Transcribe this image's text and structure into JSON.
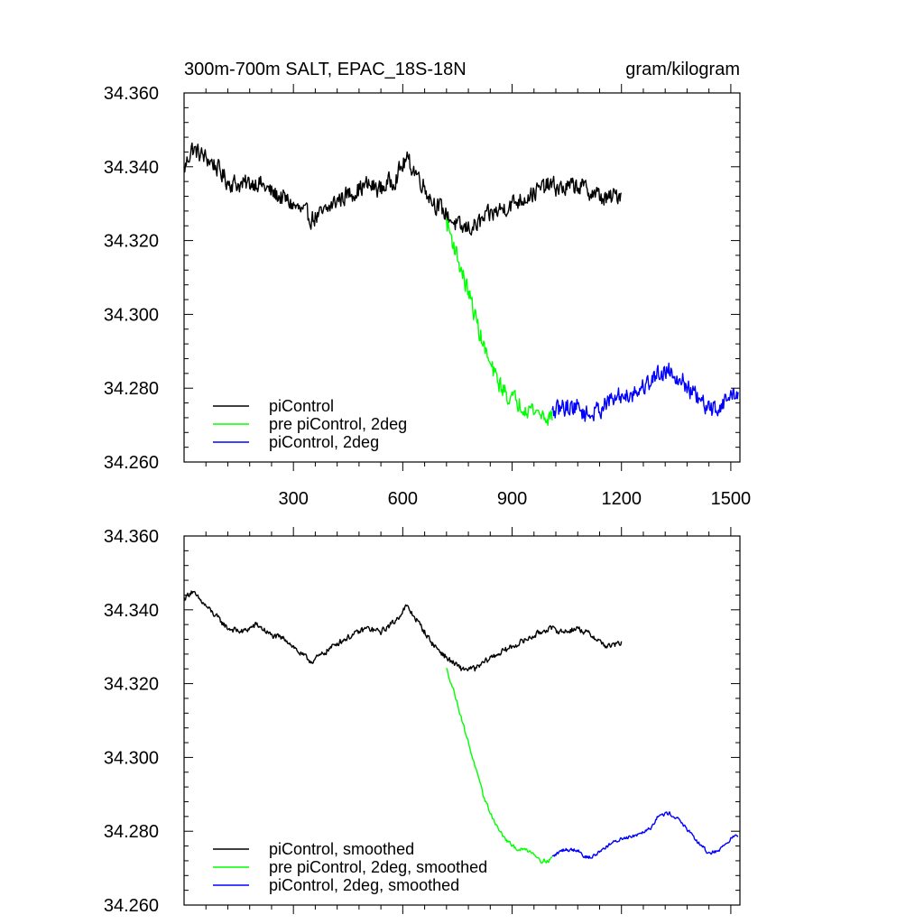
{
  "chart_data": [
    {
      "type": "line",
      "title": "300m-700m SALT, EPAC_18S-18N",
      "units": "gram/kilogram",
      "xlim": [
        0,
        1525
      ],
      "ylim": [
        34.26,
        34.36
      ],
      "x_ticks": [
        300,
        600,
        900,
        1200,
        1500
      ],
      "y_ticks": [
        "34.260",
        "34.280",
        "34.300",
        "34.320",
        "34.340",
        "34.360"
      ],
      "legend_position": "bottom-left",
      "series": [
        {
          "name": "piControl",
          "color": "#000000",
          "noise": 0.0035,
          "x": [
            0,
            20,
            50,
            80,
            120,
            160,
            200,
            240,
            280,
            320,
            350,
            380,
            420,
            460,
            500,
            540,
            580,
            610,
            640,
            680,
            720,
            760,
            800,
            840,
            880,
            920,
            960,
            1000,
            1040,
            1080,
            1120,
            1160,
            1200
          ],
          "y": [
            34.339,
            34.345,
            34.343,
            34.341,
            34.336,
            34.335,
            34.336,
            34.333,
            34.331,
            34.328,
            34.326,
            34.327,
            34.331,
            34.333,
            34.335,
            34.334,
            34.337,
            34.342,
            34.338,
            34.331,
            34.327,
            34.323,
            34.324,
            34.327,
            34.329,
            34.331,
            34.333,
            34.335,
            34.334,
            34.335,
            34.333,
            34.331,
            34.333
          ]
        },
        {
          "name": "pre piControl, 2deg",
          "color": "#00ff00",
          "noise": 0.0035,
          "x": [
            720,
            740,
            760,
            780,
            800,
            820,
            840,
            860,
            880,
            900,
            920,
            940,
            960,
            980,
            1000,
            1010
          ],
          "y": [
            34.325,
            34.319,
            34.312,
            34.306,
            34.299,
            34.292,
            34.286,
            34.282,
            34.279,
            34.277,
            34.276,
            34.275,
            34.274,
            34.273,
            34.272,
            34.273
          ]
        },
        {
          "name": "piControl, 2deg",
          "color": "#0000ff",
          "noise": 0.0035,
          "x": [
            1010,
            1040,
            1080,
            1100,
            1120,
            1160,
            1200,
            1240,
            1280,
            1300,
            1330,
            1360,
            1400,
            1440,
            1470,
            1500,
            1520
          ],
          "y": [
            34.273,
            34.275,
            34.275,
            34.273,
            34.273,
            34.276,
            34.278,
            34.279,
            34.282,
            34.284,
            34.285,
            34.283,
            34.278,
            34.274,
            34.275,
            34.278,
            34.279
          ]
        }
      ]
    },
    {
      "type": "line",
      "xlim": [
        0,
        1525
      ],
      "ylim": [
        34.26,
        34.36
      ],
      "y_ticks": [
        "34.260",
        "34.280",
        "34.300",
        "34.320",
        "34.340",
        "34.360"
      ],
      "legend_position": "bottom-left",
      "series": [
        {
          "name": "piControl, smoothed",
          "color": "#000000",
          "noise": 0.0011,
          "x": [
            0,
            20,
            50,
            80,
            120,
            160,
            200,
            240,
            280,
            320,
            350,
            380,
            420,
            460,
            500,
            540,
            580,
            610,
            640,
            680,
            720,
            760,
            800,
            840,
            880,
            920,
            960,
            1000,
            1040,
            1080,
            1120,
            1160,
            1200
          ],
          "y": [
            34.343,
            34.345,
            34.342,
            34.339,
            34.335,
            34.334,
            34.336,
            34.333,
            34.332,
            34.328,
            34.326,
            34.328,
            34.331,
            34.333,
            34.335,
            34.334,
            34.337,
            34.341,
            34.337,
            34.331,
            34.327,
            34.324,
            34.324,
            34.327,
            34.329,
            34.331,
            34.333,
            34.335,
            34.334,
            34.335,
            34.333,
            34.33,
            34.331
          ]
        },
        {
          "name": "pre piControl, 2deg, smoothed",
          "color": "#00ff00",
          "noise": 0.0007,
          "x": [
            720,
            740,
            760,
            780,
            800,
            820,
            840,
            860,
            880,
            900,
            920,
            940,
            960,
            980,
            1000,
            1010
          ],
          "y": [
            34.324,
            34.318,
            34.311,
            34.304,
            34.297,
            34.29,
            34.285,
            34.281,
            34.278,
            34.276,
            34.275,
            34.275,
            34.274,
            34.272,
            34.272,
            34.273
          ]
        },
        {
          "name": "piControl, 2deg, smoothed",
          "color": "#0000ff",
          "noise": 0.0007,
          "x": [
            1010,
            1040,
            1080,
            1100,
            1120,
            1160,
            1200,
            1240,
            1280,
            1300,
            1330,
            1360,
            1400,
            1440,
            1470,
            1500,
            1520
          ],
          "y": [
            34.273,
            34.275,
            34.275,
            34.273,
            34.273,
            34.276,
            34.278,
            34.279,
            34.281,
            34.284,
            34.285,
            34.283,
            34.278,
            34.274,
            34.275,
            34.278,
            34.279
          ]
        }
      ]
    }
  ]
}
